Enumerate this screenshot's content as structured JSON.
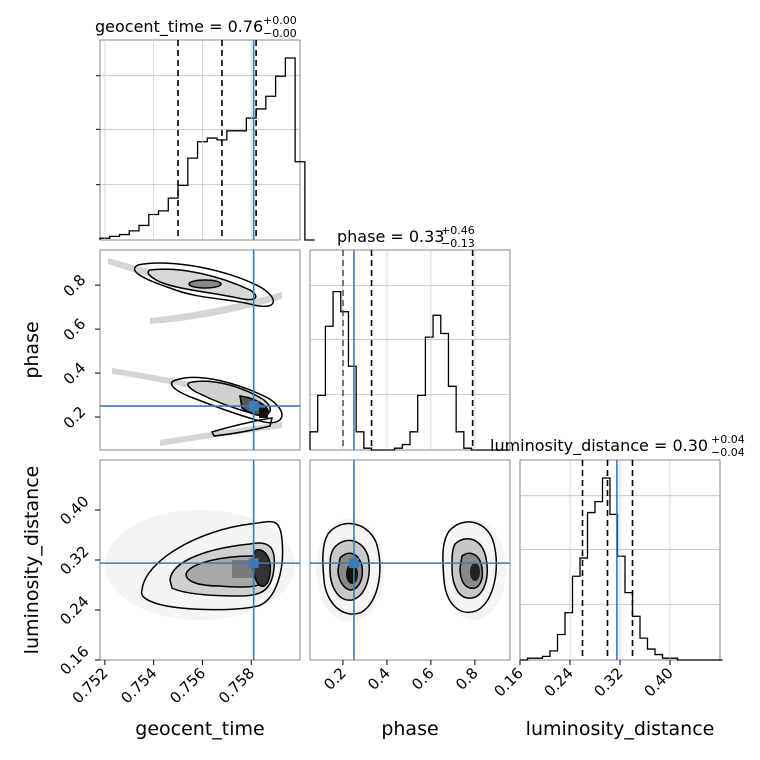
{
  "chart_data": {
    "type": "corner",
    "parameters": [
      "geocent_time",
      "phase",
      "luminosity_distance"
    ],
    "titles": [
      {
        "text": "geocent_time = 0.76",
        "plus": "+0.00",
        "minus": "−0.00"
      },
      {
        "text": "phase = 0.33",
        "plus": "+0.46",
        "minus": "−0.13"
      },
      {
        "text": "luminosity_distance = 0.30",
        "plus": "+0.04",
        "minus": "−0.04"
      }
    ],
    "axis_labels": [
      "geocent_time",
      "phase",
      "luminosity_distance"
    ],
    "ranges": {
      "geocent_time": [
        0.7518,
        0.76
      ],
      "phase": [
        0.05,
        0.96
      ],
      "luminosity_distance": [
        0.16,
        0.48
      ]
    },
    "ticks": {
      "geocent_time": [
        "0.752",
        "0.754",
        "0.756",
        "0.758"
      ],
      "geocent_time_values": [
        0.752,
        0.754,
        0.756,
        0.758
      ],
      "phase": [
        "0.2",
        "0.4",
        "0.6",
        "0.8"
      ],
      "phase_values": [
        0.2,
        0.4,
        0.6,
        0.8
      ],
      "luminosity_distance": [
        "0.16",
        "0.24",
        "0.32",
        "0.40"
      ],
      "luminosity_distance_values": [
        0.16,
        0.24,
        0.32,
        0.4
      ]
    },
    "truths": {
      "geocent_time": 0.7581,
      "phase": 0.25,
      "luminosity_distance": 0.315
    },
    "quantiles": {
      "geocent_time": [
        0.755,
        0.7568,
        0.7582
      ],
      "phase": [
        0.2,
        0.33,
        0.79
      ],
      "luminosity_distance": [
        0.26,
        0.3,
        0.34
      ]
    },
    "histograms": {
      "geocent_time": {
        "edges_start": 0.7518,
        "bin_width": 0.0004,
        "counts": [
          0.01,
          0.02,
          0.03,
          0.05,
          0.08,
          0.14,
          0.16,
          0.23,
          0.3,
          0.45,
          0.54,
          0.56,
          0.55,
          0.6,
          0.6,
          0.67,
          0.72,
          0.79,
          0.9,
          1.0,
          0.43,
          0.0
        ]
      },
      "phase": {
        "edges_start": 0.05,
        "bin_width": 0.035,
        "counts": [
          0.1,
          0.3,
          0.68,
          0.87,
          0.76,
          0.46,
          0.1,
          0.01,
          0.0,
          0.0,
          0.0,
          0.01,
          0.03,
          0.1,
          0.3,
          0.62,
          0.74,
          0.64,
          0.35,
          0.1,
          0.01,
          0.0,
          0.0,
          0.0,
          0.0,
          0.0
        ]
      },
      "luminosity_distance": {
        "edges_start": 0.16,
        "bin_width": 0.012,
        "counts": [
          0.0,
          0.01,
          0.01,
          0.02,
          0.05,
          0.14,
          0.26,
          0.46,
          0.56,
          0.81,
          0.87,
          1.0,
          0.8,
          0.57,
          0.37,
          0.24,
          0.12,
          0.06,
          0.03,
          0.01,
          0.01,
          0.0,
          0.0,
          0.0,
          0.0,
          0.0,
          0.0
        ]
      }
    }
  }
}
